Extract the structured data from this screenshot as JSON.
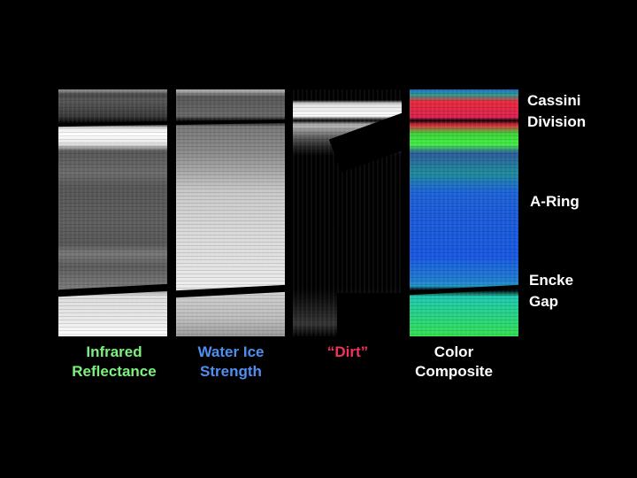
{
  "panels": [
    {
      "label_line1": "Infrared",
      "label_line2": "Reflectance",
      "label_color": "#7cf27c"
    },
    {
      "label_line1": "Water Ice",
      "label_line2": "Strength",
      "label_color": "#4f8ff2"
    },
    {
      "label_line1": "“Dirt”",
      "label_line2": "",
      "label_color": "#f2335a"
    },
    {
      "label_line1": "Color",
      "label_line2": "Composite",
      "label_color": "#ffffff"
    }
  ],
  "annotations": {
    "cassini_line1": "Cassini",
    "cassini_line2": "Division",
    "a_ring": "A-Ring",
    "encke_line1": "Encke",
    "encke_line2": "Gap"
  }
}
